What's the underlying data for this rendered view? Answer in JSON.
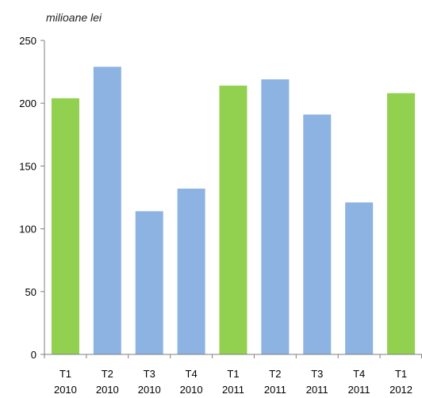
{
  "chart_data": {
    "type": "bar",
    "unit_label": "milioane lei",
    "categories": [
      [
        "T1",
        "2010"
      ],
      [
        "T2",
        "2010"
      ],
      [
        "T3",
        "2010"
      ],
      [
        "T4",
        "2010"
      ],
      [
        "T1",
        "2011"
      ],
      [
        "T2",
        "2011"
      ],
      [
        "T3",
        "2011"
      ],
      [
        "T4",
        "2011"
      ],
      [
        "T1",
        "2012"
      ]
    ],
    "values": [
      204,
      229,
      114,
      132,
      214,
      219,
      191,
      121,
      208
    ],
    "ylim": [
      0,
      250
    ],
    "yticks": [
      0,
      50,
      100,
      150,
      200,
      250
    ],
    "grid": false,
    "bar_colors": [
      "#92d050",
      "#8db3e2",
      "#8db3e2",
      "#8db3e2",
      "#92d050",
      "#8db3e2",
      "#8db3e2",
      "#8db3e2",
      "#92d050"
    ],
    "axis_color": "#7f7f7f"
  }
}
